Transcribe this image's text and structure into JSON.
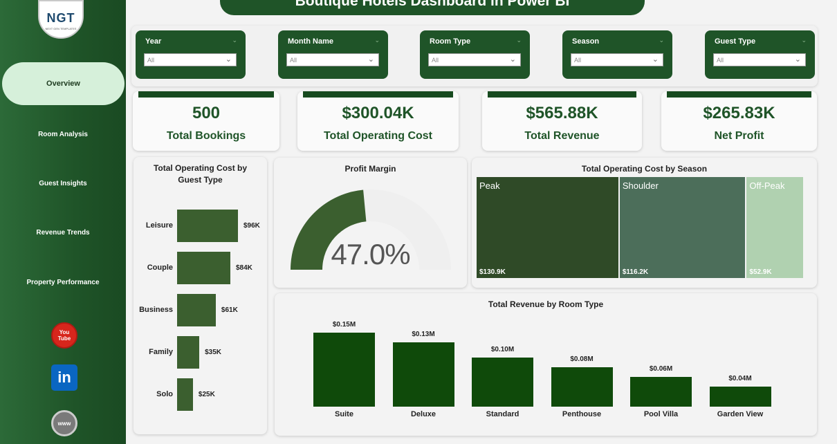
{
  "title": "Boutique Hotels Dashboard in Power BI",
  "logo": {
    "mark": "NGT",
    "sub": "NEXT GEN TEMPLATES"
  },
  "nav": {
    "items": [
      "Overview",
      "Room Analysis",
      "Guest Insights",
      "Revenue Trends",
      "Property Performance"
    ],
    "active": "Overview"
  },
  "social": {
    "youtube": "You Tube",
    "linkedin": "in",
    "web": "www"
  },
  "slicers": [
    {
      "label": "Year",
      "value": "All"
    },
    {
      "label": "Month Name",
      "value": "All"
    },
    {
      "label": "Room Type",
      "value": "All"
    },
    {
      "label": "Season",
      "value": "All"
    },
    {
      "label": "Guest Type",
      "value": "All"
    }
  ],
  "kpis": [
    {
      "value": "500",
      "label": "Total Bookings"
    },
    {
      "value": "$300.04K",
      "label": "Total Operating Cost"
    },
    {
      "value": "$565.88K",
      "label": "Total Revenue"
    },
    {
      "value": "$265.83K",
      "label": "Net Profit"
    }
  ],
  "colors": {
    "primary": "#1f5428",
    "bar": "#0f4a0a",
    "hbar": "#3b5f2f",
    "gauge": "#3b5f2f",
    "peak": "#2f4a27",
    "shoulder": "#4c6e5a",
    "offpeak": "#b0d1b0"
  },
  "chart_data": [
    {
      "type": "bar",
      "orientation": "horizontal",
      "title": "Total Operating Cost by Guest Type",
      "categories": [
        "Leisure",
        "Couple",
        "Business",
        "Family",
        "Solo"
      ],
      "values": [
        96,
        84,
        61,
        35,
        25
      ],
      "labels": [
        "$96K",
        "$84K",
        "$61K",
        "$35K",
        "$25K"
      ],
      "unit": "K"
    },
    {
      "type": "gauge",
      "title": "Profit Margin",
      "value": 47.0,
      "max": 100,
      "label": "47.0%"
    },
    {
      "type": "treemap",
      "title": "Total Operating Cost by Season",
      "categories": [
        "Peak",
        "Shoulder",
        "Off-Peak"
      ],
      "values": [
        130.9,
        116.2,
        52.9
      ],
      "labels": [
        "$130.9K",
        "$116.2K",
        "$52.9K"
      ]
    },
    {
      "type": "bar",
      "title": "Total Revenue by Room Type",
      "categories": [
        "Suite",
        "Deluxe",
        "Standard",
        "Penthouse",
        "Pool Villa",
        "Garden View"
      ],
      "values": [
        0.15,
        0.13,
        0.1,
        0.08,
        0.06,
        0.04
      ],
      "labels": [
        "$0.15M",
        "$0.13M",
        "$0.10M",
        "$0.08M",
        "$0.06M",
        "$0.04M"
      ],
      "unit": "M"
    }
  ]
}
